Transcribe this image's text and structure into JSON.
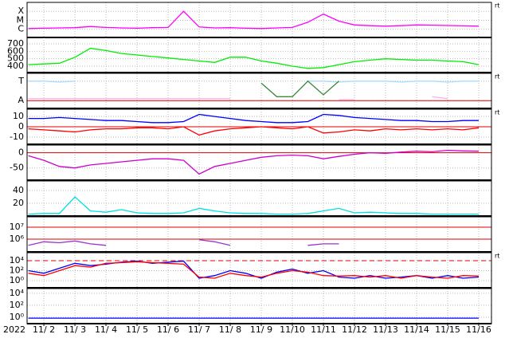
{
  "chart_data": {
    "type": "multi-panel",
    "year_label": "2022",
    "x": [
      1.5,
      2,
      2.5,
      3,
      3.5,
      4,
      4.5,
      5,
      5.5,
      6,
      6.5,
      7,
      7.5,
      8,
      8.5,
      9,
      9.5,
      10,
      10.5,
      11,
      11.5,
      12,
      12.5,
      13,
      13.5,
      14,
      14.5,
      15,
      15.5,
      16
    ],
    "xlim": [
      1.46,
      16.41
    ],
    "xticks": [
      {
        "value": 2,
        "label": "11/ 2"
      },
      {
        "value": 3,
        "label": "11/ 3"
      },
      {
        "value": 4,
        "label": "11/ 4"
      },
      {
        "value": 5,
        "label": "11/ 5"
      },
      {
        "value": 6,
        "label": "11/ 6"
      },
      {
        "value": 7,
        "label": "11/ 7"
      },
      {
        "value": 8,
        "label": "11/ 8"
      },
      {
        "value": 9,
        "label": "11/ 9"
      },
      {
        "value": 10,
        "label": "11/10"
      },
      {
        "value": 11,
        "label": "11/11"
      },
      {
        "value": 12,
        "label": "11/12"
      },
      {
        "value": 13,
        "label": "11/13"
      },
      {
        "value": 14,
        "label": "11/14"
      },
      {
        "value": 15,
        "label": "11/15"
      },
      {
        "value": 16,
        "label": "11/16"
      }
    ],
    "panels": [
      {
        "type": "line",
        "log": true,
        "ylim": [
          1.2e-07,
          0.001
        ],
        "right_label": "rt",
        "yticks": [
          {
            "value": 0.0001,
            "label": "X"
          },
          {
            "value": 1e-05,
            "label": "M"
          },
          {
            "value": 1e-06,
            "label": "C"
          }
        ],
        "series": [
          {
            "color": "#ff00ff",
            "values": [
              1.2e-06,
              1.3e-06,
              1.4e-06,
              1.5e-06,
              2e-06,
              1.6e-06,
              1.4e-06,
              1.3e-06,
              1.5e-06,
              1.6e-06,
              0.0001,
              1.8e-06,
              1.4e-06,
              1.5e-06,
              1.3e-06,
              1.2e-06,
              1.4e-06,
              1.6e-06,
              6e-06,
              5e-05,
              8e-06,
              3e-06,
              2.5e-06,
              2.2e-06,
              2.5e-06,
              3e-06,
              2.8e-06,
              2.6e-06,
              2.4e-06,
              2.2e-06
            ]
          }
        ]
      },
      {
        "type": "line",
        "ylim": [
          314,
          786
        ],
        "yticks": [
          700,
          600,
          500,
          400
        ],
        "series": [
          {
            "color": "#00ee00",
            "values": [
              420,
              430,
              440,
              520,
              640,
              610,
              570,
              550,
              530,
              510,
              490,
              470,
              450,
              520,
              520,
              470,
              440,
              400,
              370,
              380,
              420,
              460,
              480,
              500,
              490,
              480,
              480,
              470,
              460,
              420
            ]
          }
        ]
      },
      {
        "type": "line",
        "ylim": [
          0.6,
          2.4
        ],
        "right_label": "rt",
        "reference_lines": [
          1
        ],
        "yticks": [
          {
            "value": 2,
            "label": "T"
          },
          {
            "value": 1,
            "label": "A"
          }
        ],
        "series": [
          {
            "color": "#ffb0f0",
            "values": [
              1.1,
              1.1,
              1.1,
              1.1,
              1.1,
              1.1,
              1.1,
              1.1,
              1.1,
              1.1,
              1.1,
              1.1,
              1.1,
              1.1,
              null,
              null,
              null,
              null,
              null,
              null,
              1.05,
              1.05,
              null,
              null,
              1.1,
              null,
              1.2,
              1.1,
              null,
              null
            ]
          },
          {
            "color": "#aadcff",
            "values": [
              2,
              2,
              1.95,
              2,
              null,
              null,
              null,
              null,
              null,
              null,
              null,
              null,
              1.9,
              null,
              null,
              null,
              null,
              null,
              2,
              2,
              1.95,
              2,
              2,
              2,
              1.95,
              2,
              2,
              1.95,
              2,
              2
            ]
          },
          {
            "color": "#3a8a3a",
            "values": [
              null,
              null,
              null,
              null,
              null,
              null,
              null,
              null,
              null,
              null,
              null,
              null,
              null,
              null,
              null,
              1.9,
              1.2,
              1.2,
              2,
              1.3,
              2,
              null,
              null,
              null,
              null,
              null,
              null,
              null,
              null,
              null
            ]
          }
        ]
      },
      {
        "type": "line",
        "ylim": [
          -17,
          17
        ],
        "yticks": [
          10,
          0,
          -10
        ],
        "right_label": "rt",
        "reference_lines": [
          0
        ],
        "series": [
          {
            "color": "#0000ff",
            "values": [
              8,
              8,
              9,
              8,
              7,
              6,
              6,
              5,
              4,
              4,
              5,
              12,
              10,
              8,
              6,
              5,
              4,
              4,
              5,
              12,
              11,
              9,
              8,
              7,
              6,
              6,
              5,
              5,
              6,
              6
            ]
          },
          {
            "color": "#ff0000",
            "values": [
              -2,
              -3,
              -4,
              -5,
              -3,
              -2,
              -2,
              -1,
              -1,
              -2,
              0,
              -8,
              -4,
              -2,
              -1,
              0,
              -1,
              -2,
              0,
              -6,
              -5,
              -3,
              -4,
              -2,
              -3,
              -2,
              -3,
              -2,
              -3,
              -1
            ]
          }
        ]
      },
      {
        "type": "line",
        "ylim": [
          -90,
          25
        ],
        "yticks": [
          0,
          -50
        ],
        "reference_lines": [
          0
        ],
        "series": [
          {
            "color": "#cc00cc",
            "values": [
              -10,
              -25,
              -45,
              -50,
              -40,
              -35,
              -30,
              -25,
              -20,
              -20,
              -25,
              -70,
              -45,
              -35,
              -25,
              -15,
              -10,
              -8,
              -10,
              -20,
              -12,
              -5,
              0,
              -2,
              2,
              5,
              3,
              8,
              6,
              5
            ]
          }
        ]
      },
      {
        "type": "line",
        "ylim": [
          0,
          55
        ],
        "yticks": [
          40,
          20
        ],
        "series": [
          {
            "color": "#00e0e0",
            "values": [
              3,
              4,
              4,
              30,
              8,
              6,
              10,
              5,
              4,
              4,
              5,
              12,
              8,
              5,
              4,
              4,
              3,
              3,
              4,
              8,
              12,
              5,
              6,
              5,
              4,
              4,
              3,
              3,
              3,
              3
            ]
          }
        ]
      },
      {
        "type": "line",
        "log": true,
        "ylim": [
          85000,
          74000000
        ],
        "reference_lines": [
          1000000,
          10000000
        ],
        "yticks": [
          {
            "value": 10000000,
            "label": "10⁷"
          },
          {
            "value": 1000000,
            "label": "10⁶"
          }
        ],
        "series": [
          {
            "color": "#9933cc",
            "values": [
              300000,
              600000,
              500000,
              700000,
              400000,
              300000,
              null,
              null,
              null,
              null,
              null,
              900000,
              600000,
              300000,
              null,
              null,
              null,
              null,
              300000,
              400000,
              400000,
              null,
              null,
              null,
              null,
              null,
              null,
              null,
              null,
              null
            ]
          }
        ]
      },
      {
        "type": "line",
        "log": true,
        "ylim": [
          0.036,
          400000
        ],
        "right_label": "rt",
        "reference_lines": [
          10000
        ],
        "reference_dashed": true,
        "yticks": [
          {
            "value": 10000,
            "label": "10⁴"
          },
          {
            "value": 100,
            "label": "10²"
          },
          {
            "value": 1,
            "label": "10⁰"
          }
        ],
        "series": [
          {
            "color": "#0000ff",
            "values": [
              100,
              30,
              300,
              3000,
              1000,
              2000,
              5000,
              8000,
              3000,
              5000,
              8000,
              3,
              10,
              100,
              30,
              3,
              50,
              200,
              30,
              100,
              5,
              3,
              10,
              3,
              5,
              10,
              3,
              10,
              3,
              5
            ]
          },
          {
            "color": "#ff0000",
            "values": [
              30,
              10,
              100,
              1000,
              500,
              3000,
              4000,
              6000,
              4000,
              3000,
              2000,
              5,
              3,
              30,
              10,
              5,
              30,
              100,
              50,
              10,
              8,
              10,
              5,
              10,
              3,
              10,
              5,
              3,
              10,
              8
            ]
          }
        ]
      },
      {
        "type": "line",
        "log": true,
        "ylim": [
          0.085,
          60000
        ],
        "yticks": [
          {
            "value": 10000,
            "label": "10⁴"
          },
          {
            "value": 100,
            "label": "10²"
          },
          {
            "value": 1,
            "label": "10⁰"
          }
        ],
        "series": [
          {
            "color": "#0000ff",
            "values": [
              0.7,
              0.7,
              0.7,
              0.7,
              0.7,
              0.7,
              0.7,
              0.7,
              0.7,
              0.7,
              0.7,
              0.7,
              0.7,
              0.7,
              0.7,
              0.7,
              0.7,
              0.7,
              0.7,
              0.7,
              0.7,
              0.7,
              0.7,
              0.7,
              0.7,
              0.7,
              0.7,
              0.7,
              0.7,
              0.7
            ]
          }
        ]
      }
    ]
  }
}
